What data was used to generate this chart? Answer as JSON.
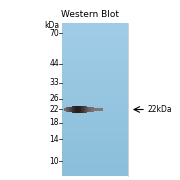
{
  "title": "Western Blot",
  "bg_color": "#ffffff",
  "lane_color": "#8bbfdb",
  "mw_labels": [
    "kDa",
    "70",
    "44",
    "33",
    "26",
    "22",
    "18",
    "14",
    "10"
  ],
  "mw_values": [
    null,
    70,
    44,
    33,
    26,
    22,
    18,
    14,
    10
  ],
  "y_min": 8,
  "y_max": 82,
  "band_mw": 22,
  "band_label": "← 22kDa",
  "band_color": "#3a3030",
  "title_fontsize": 6.5,
  "mw_fontsize": 5.5,
  "annotation_fontsize": 5.5
}
